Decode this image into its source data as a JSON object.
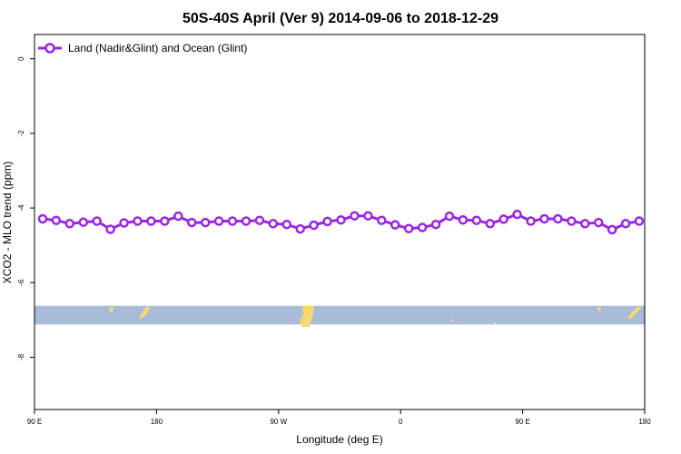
{
  "chart_data": {
    "type": "line",
    "title": "50S-40S April (Ver 9)   2014-09-06 to 2018-12-29",
    "xlabel": "Longitude (deg E)",
    "ylabel": "XCO2 - MLO trend (ppm)",
    "x_ticks": [
      {
        "value": 90,
        "label": "90 E"
      },
      {
        "value": 180,
        "label": "180"
      },
      {
        "value": 270,
        "label": "90 W"
      },
      {
        "value": 360,
        "label": "0"
      },
      {
        "value": 450,
        "label": "90 E"
      },
      {
        "value": 540,
        "label": "180"
      }
    ],
    "y_ticks": [
      {
        "value": 0,
        "label": "0"
      },
      {
        "value": -2,
        "label": "-2"
      },
      {
        "value": -4,
        "label": "-4"
      },
      {
        "value": -6,
        "label": "-6"
      },
      {
        "value": -8,
        "label": "-8"
      }
    ],
    "xlim": [
      90,
      540
    ],
    "ylim": [
      -9.4,
      0.65
    ],
    "grid": false,
    "legend_position": "top-left",
    "series": [
      {
        "name": "Land (Nadir&Glint) and Ocean (Glint)",
        "color": "#9a27e0",
        "marker": "open-circle",
        "x": [
          96,
          106,
          116,
          126,
          136,
          146,
          156,
          166,
          176,
          186,
          196,
          206,
          216,
          226,
          236,
          246,
          256,
          266,
          276,
          286,
          296,
          306,
          316,
          326,
          336,
          346,
          356,
          366,
          376,
          386,
          396,
          406,
          416,
          426,
          436,
          446,
          456,
          466,
          476,
          486,
          496,
          506,
          516,
          526,
          536
        ],
        "values": [
          -4.29,
          -4.33,
          -4.42,
          -4.38,
          -4.35,
          -4.57,
          -4.4,
          -4.35,
          -4.35,
          -4.35,
          -4.22,
          -4.39,
          -4.39,
          -4.35,
          -4.35,
          -4.35,
          -4.33,
          -4.42,
          -4.44,
          -4.56,
          -4.46,
          -4.36,
          -4.32,
          -4.21,
          -4.21,
          -4.33,
          -4.45,
          -4.55,
          -4.52,
          -4.44,
          -4.22,
          -4.32,
          -4.33,
          -4.42,
          -4.3,
          -4.17,
          -4.35,
          -4.29,
          -4.29,
          -4.35,
          -4.42,
          -4.39,
          -4.58,
          -4.42,
          -4.35
        ]
      }
    ],
    "map_band": {
      "y_range": [
        -7.12,
        -6.62
      ],
      "ocean_color": "#a8bbd9",
      "land_color": "#f6d872"
    }
  }
}
